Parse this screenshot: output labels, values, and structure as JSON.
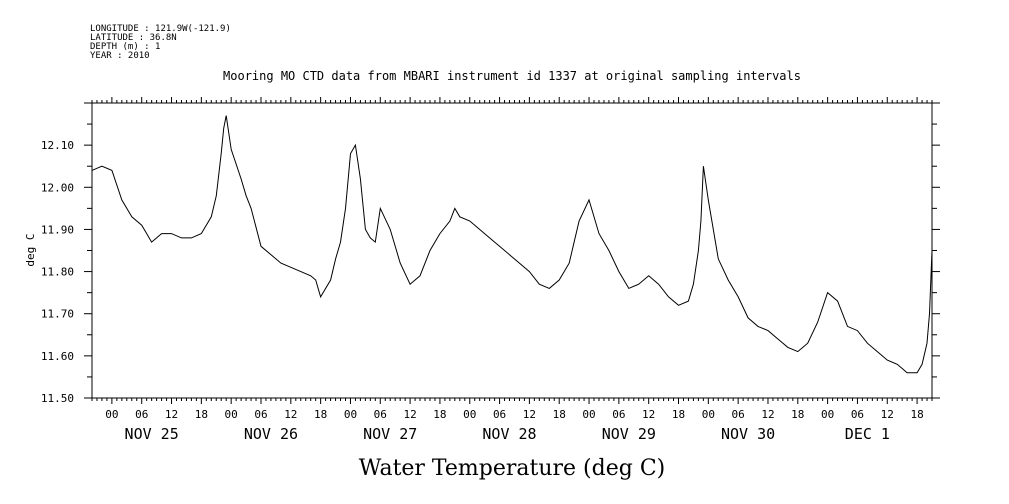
{
  "header": {
    "longitude": "LONGITUDE : 121.9W(-121.9)",
    "latitude": "LATITUDE : 36.8N",
    "depth": "DEPTH (m) : 1",
    "year": "YEAR : 2010"
  },
  "chart_data": {
    "type": "line",
    "title": "Mooring MO CTD data from MBARI instrument id 1337 at original sampling intervals",
    "xlabel": "Water Temperature (deg C)",
    "ylabel": "deg C",
    "ylim": [
      11.5,
      12.2
    ],
    "y_ticks": [
      "11.50",
      "11.60",
      "11.70",
      "11.80",
      "11.90",
      "12.00",
      "12.10"
    ],
    "y_tick_values": [
      11.5,
      11.6,
      11.7,
      11.8,
      11.9,
      12.0,
      12.1
    ],
    "x_hours_labels": [
      "00",
      "06",
      "12",
      "18",
      "00",
      "06",
      "12",
      "18",
      "00",
      "06",
      "12",
      "18",
      "00",
      "06",
      "12",
      "18",
      "00",
      "06",
      "12",
      "18",
      "00",
      "06",
      "12",
      "18",
      "00",
      "06",
      "12",
      "18"
    ],
    "x_day_labels": [
      "NOV 25",
      "NOV 26",
      "NOV 27",
      "NOV 28",
      "NOV 29",
      "NOV 30",
      "DEC  1"
    ],
    "grid": false,
    "series": [
      {
        "x": [
          "Nov 24 20:00",
          "Nov 24 22:00",
          "Nov 25 00:00",
          "Nov 25 02:00",
          "Nov 25 04:00",
          "Nov 25 06:00",
          "Nov 25 07:00",
          "Nov 25 08:00",
          "Nov 25 10:00",
          "Nov 25 12:00",
          "Nov 25 14:00",
          "Nov 25 16:00",
          "Nov 25 18:00",
          "Nov 25 20:00",
          "Nov 25 21:00",
          "Nov 25 22:00",
          "Nov 25 22:30",
          "Nov 25 23:00",
          "Nov 26 00:00",
          "Nov 26 02:00",
          "Nov 26 03:00",
          "Nov 26 04:00",
          "Nov 26 06:00",
          "Nov 26 10:00",
          "Nov 26 14:00",
          "Nov 26 16:00",
          "Nov 26 17:00",
          "Nov 26 18:00",
          "Nov 26 20:00",
          "Nov 26 21:00",
          "Nov 26 22:00",
          "Nov 26 23:00",
          "Nov 27 00:00",
          "Nov 27 01:00",
          "Nov 27 02:00",
          "Nov 27 03:00",
          "Nov 27 04:00",
          "Nov 27 05:00",
          "Nov 27 06:00",
          "Nov 27 08:00",
          "Nov 27 10:00",
          "Nov 27 12:00",
          "Nov 27 14:00",
          "Nov 27 16:00",
          "Nov 27 18:00",
          "Nov 27 20:00",
          "Nov 27 21:00",
          "Nov 27 22:00",
          "Nov 28 00:00",
          "Nov 28 04:00",
          "Nov 28 08:00",
          "Nov 28 12:00",
          "Nov 28 14:00",
          "Nov 28 16:00",
          "Nov 28 18:00",
          "Nov 28 20:00",
          "Nov 28 21:00",
          "Nov 28 22:00",
          "Nov 29 00:00",
          "Nov 29 02:00",
          "Nov 29 04:00",
          "Nov 29 06:00",
          "Nov 29 08:00",
          "Nov 29 10:00",
          "Nov 29 12:00",
          "Nov 29 14:00",
          "Nov 29 16:00",
          "Nov 29 18:00",
          "Nov 29 20:00",
          "Nov 29 21:00",
          "Nov 29 22:00",
          "Nov 29 22:30",
          "Nov 29 23:00",
          "Nov 30 00:00",
          "Nov 30 02:00",
          "Nov 30 04:00",
          "Nov 30 06:00",
          "Nov 30 08:00",
          "Nov 30 10:00",
          "Nov 30 12:00",
          "Nov 30 14:00",
          "Nov 30 16:00",
          "Nov 30 18:00",
          "Nov 30 20:00",
          "Nov 30 22:00",
          "Dec 1 00:00",
          "Dec 1 02:00",
          "Dec 1 04:00",
          "Dec 1 06:00",
          "Dec 1 08:00",
          "Dec 1 10:00",
          "Dec 1 12:00",
          "Dec 1 14:00",
          "Dec 1 15:00",
          "Dec 1 16:00",
          "Dec 1 18:00",
          "Dec 1 19:00",
          "Dec 1 20:00",
          "Dec 1 20:30",
          "Dec 1 21:00"
        ],
        "y": [
          12.04,
          12.05,
          12.04,
          11.97,
          11.93,
          11.91,
          11.89,
          11.87,
          11.89,
          11.89,
          11.88,
          11.88,
          11.89,
          11.93,
          11.98,
          12.08,
          12.14,
          12.17,
          12.09,
          12.02,
          11.98,
          11.95,
          11.86,
          11.82,
          11.8,
          11.79,
          11.78,
          11.74,
          11.78,
          11.83,
          11.87,
          11.95,
          12.08,
          12.1,
          12.02,
          11.9,
          11.88,
          11.87,
          11.95,
          11.9,
          11.82,
          11.77,
          11.79,
          11.85,
          11.89,
          11.92,
          11.95,
          11.93,
          11.92,
          11.88,
          11.84,
          11.8,
          11.77,
          11.76,
          11.78,
          11.82,
          11.87,
          11.92,
          11.97,
          11.89,
          11.85,
          11.8,
          11.76,
          11.77,
          11.79,
          11.77,
          11.74,
          11.72,
          11.73,
          11.77,
          11.85,
          11.92,
          12.05,
          11.97,
          11.83,
          11.78,
          11.74,
          11.69,
          11.67,
          11.66,
          11.64,
          11.62,
          11.61,
          11.63,
          11.68,
          11.75,
          11.73,
          11.67,
          11.66,
          11.63,
          11.61,
          11.59,
          11.58,
          11.57,
          11.56,
          11.56,
          11.58,
          11.63,
          11.7,
          11.85
        ]
      }
    ]
  }
}
